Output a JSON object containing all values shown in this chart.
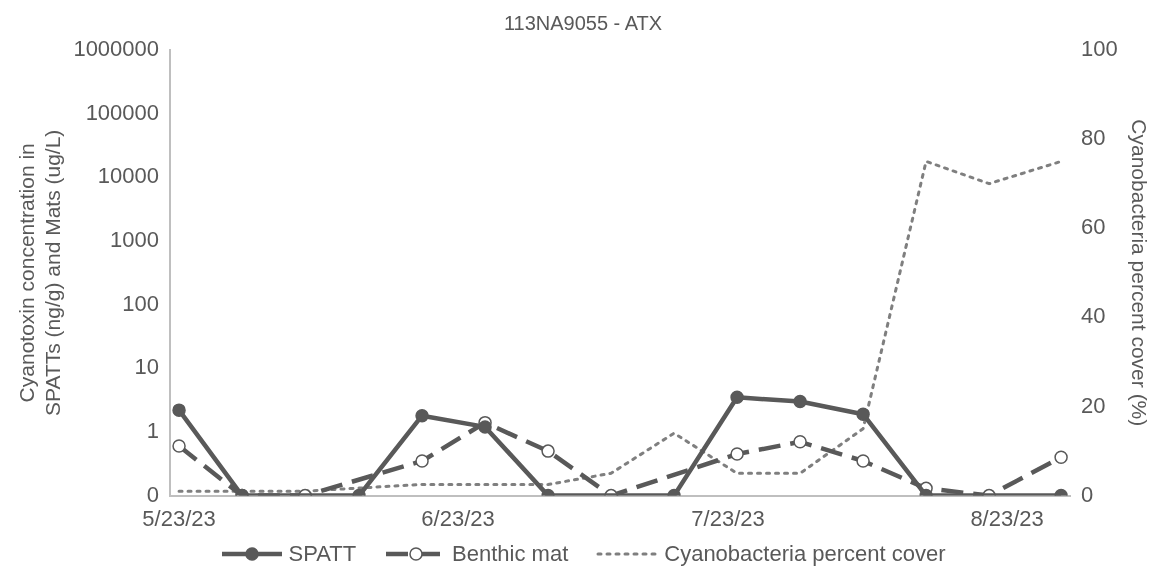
{
  "chart_data": {
    "type": "line",
    "title": "113NA9055 - ATX",
    "ylabel": "Cyanotoxin concentration in SPATTs (ng/g) and Mats (ug/L)",
    "y2label": "Cyanobacteria percent cover (%)",
    "x": [
      "--05-23",
      "--05-30",
      "--06-06",
      "--06-12",
      "--06-19",
      "--06-26",
      "--07-03",
      "--07-10",
      "--07-17",
      "--07-24",
      "--07-31",
      "--08-07",
      "--08-14",
      "--08-21",
      "--08-29"
    ],
    "xlim": [
      "--05-22",
      "--08-30"
    ],
    "xticks": [
      {
        "value": "--05-23",
        "label": "5/23/23"
      },
      {
        "value": "--06-23",
        "label": "6/23/23"
      },
      {
        "value": "--07-23",
        "label": "7/23/23"
      },
      {
        "value": "--08-23",
        "label": "8/23/23"
      }
    ],
    "log": true,
    "ylim": [
      0.1,
      1000000
    ],
    "yticks": [
      {
        "value": 0.1,
        "label": "0"
      },
      1,
      10,
      100,
      1000,
      10000,
      100000,
      1000000
    ],
    "y2lim": [
      0,
      100
    ],
    "y2ticks": [
      0,
      20,
      40,
      60,
      80,
      100
    ],
    "grid": false,
    "legend": "bottom",
    "series": [
      {
        "name": "SPATT",
        "color": "#595959",
        "marker": "circle",
        "line_style": "solid",
        "values": [
          2.2,
          0.1,
          null,
          0.1,
          1.8,
          1.2,
          0.1,
          null,
          0.1,
          3.5,
          3,
          1.9,
          0.1,
          null,
          0.1
        ]
      },
      {
        "name": "Benthic mat",
        "color": "#595959",
        "marker": "circle",
        "line_style": "dashed",
        "values": [
          0.6,
          0.1,
          0.1,
          null,
          0.35,
          1.4,
          0.5,
          0.1,
          null,
          0.45,
          0.7,
          0.35,
          0.13,
          0.1,
          0.4
        ]
      },
      {
        "name": "Cyanobacteria percent cover",
        "color": "#7f7f7f",
        "marker": "none",
        "line_style": "dotted",
        "axis": "y2",
        "values": [
          1,
          1,
          1,
          null,
          2.5,
          null,
          2.5,
          5,
          14,
          5,
          5,
          15,
          75,
          70,
          75
        ]
      }
    ]
  }
}
